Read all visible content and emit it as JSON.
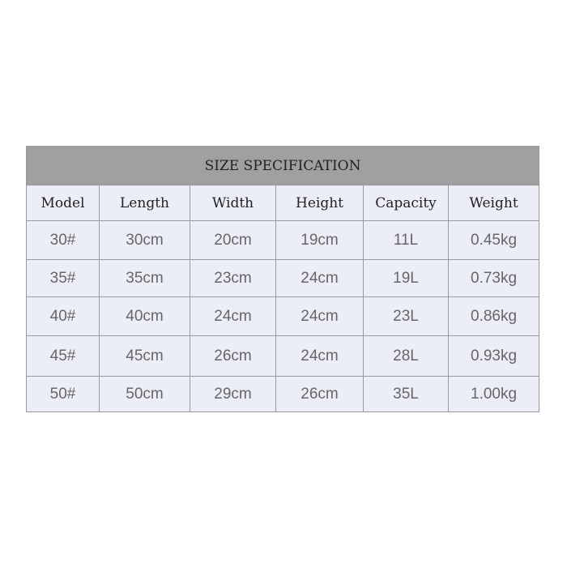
{
  "title": "SIZE SPECIFICATION",
  "headers": [
    "Model",
    "Length",
    "Width",
    "Height",
    "Capacity",
    "Weight"
  ],
  "rows": [
    [
      "30#",
      "30cm",
      "20cm",
      "19cm",
      "11L",
      "0.45kg"
    ],
    [
      "35#",
      "35cm",
      "23cm",
      "24cm",
      "19L",
      "0.73kg"
    ],
    [
      "40#",
      "40cm",
      "24cm",
      "24cm",
      "23L",
      "0.86kg"
    ],
    [
      "45#",
      "45cm",
      "26cm",
      "24cm",
      "28L",
      "0.93kg"
    ],
    [
      "50#",
      "50cm",
      "29cm",
      "26cm",
      "35L",
      "1.00kg"
    ]
  ],
  "colors": {
    "title_bg": "#a0a0a0",
    "cell_bg": "#eceef7",
    "border": "#9a9a9a"
  }
}
